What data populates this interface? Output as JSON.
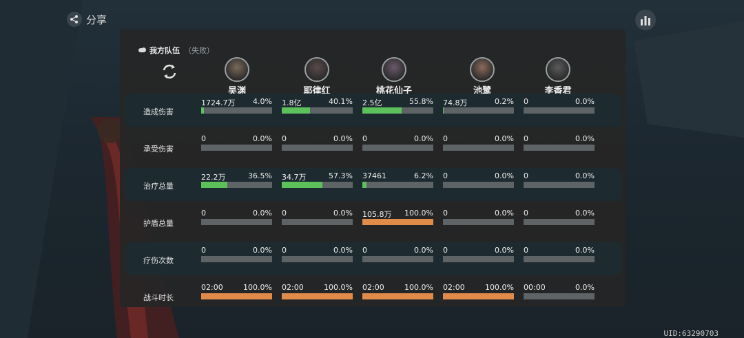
{
  "header": {
    "share_label": "分享"
  },
  "team": {
    "title": "我方队伍",
    "status": "（失败）"
  },
  "characters": [
    {
      "name": "吴渊"
    },
    {
      "name": "耶律红"
    },
    {
      "name": "桃花仙子"
    },
    {
      "name": "池鹭"
    },
    {
      "name": "李香君"
    }
  ],
  "colors": {
    "green": "#5cc15a",
    "orange": "#e08b4a",
    "track": "#5e6466"
  },
  "rows": [
    {
      "label": "造成伤害",
      "color": "green",
      "cells": [
        {
          "value": "1724.7万",
          "pct": "4.0%",
          "fraction": 0.04
        },
        {
          "value": "1.8亿",
          "pct": "40.1%",
          "fraction": 0.401
        },
        {
          "value": "2.5亿",
          "pct": "55.8%",
          "fraction": 0.558
        },
        {
          "value": "74.8万",
          "pct": "0.2%",
          "fraction": 0.002
        },
        {
          "value": "0",
          "pct": "0.0%",
          "fraction": 0
        }
      ]
    },
    {
      "label": "承受伤害",
      "color": "green",
      "cells": [
        {
          "value": "0",
          "pct": "0.0%",
          "fraction": 0
        },
        {
          "value": "0",
          "pct": "0.0%",
          "fraction": 0
        },
        {
          "value": "0",
          "pct": "0.0%",
          "fraction": 0
        },
        {
          "value": "0",
          "pct": "0.0%",
          "fraction": 0
        },
        {
          "value": "0",
          "pct": "0.0%",
          "fraction": 0
        }
      ]
    },
    {
      "label": "治疗总量",
      "color": "green",
      "cells": [
        {
          "value": "22.2万",
          "pct": "36.5%",
          "fraction": 0.365
        },
        {
          "value": "34.7万",
          "pct": "57.3%",
          "fraction": 0.573
        },
        {
          "value": "37461",
          "pct": "6.2%",
          "fraction": 0.062
        },
        {
          "value": "0",
          "pct": "0.0%",
          "fraction": 0
        },
        {
          "value": "0",
          "pct": "0.0%",
          "fraction": 0
        }
      ]
    },
    {
      "label": "护盾总量",
      "color": "orange",
      "cells": [
        {
          "value": "0",
          "pct": "0.0%",
          "fraction": 0
        },
        {
          "value": "0",
          "pct": "0.0%",
          "fraction": 0
        },
        {
          "value": "105.8万",
          "pct": "100.0%",
          "fraction": 1.0
        },
        {
          "value": "0",
          "pct": "0.0%",
          "fraction": 0
        },
        {
          "value": "0",
          "pct": "0.0%",
          "fraction": 0
        }
      ]
    },
    {
      "label": "疗伤次数",
      "color": "green",
      "cells": [
        {
          "value": "0",
          "pct": "0.0%",
          "fraction": 0
        },
        {
          "value": "0",
          "pct": "0.0%",
          "fraction": 0
        },
        {
          "value": "0",
          "pct": "0.0%",
          "fraction": 0
        },
        {
          "value": "0",
          "pct": "0.0%",
          "fraction": 0
        },
        {
          "value": "0",
          "pct": "0.0%",
          "fraction": 0
        }
      ]
    },
    {
      "label": "战斗时长",
      "color": "orange",
      "cells": [
        {
          "value": "02:00",
          "pct": "100.0%",
          "fraction": 1.0
        },
        {
          "value": "02:00",
          "pct": "100.0%",
          "fraction": 1.0
        },
        {
          "value": "02:00",
          "pct": "100.0%",
          "fraction": 1.0
        },
        {
          "value": "02:00",
          "pct": "100.0%",
          "fraction": 1.0
        },
        {
          "value": "00:00",
          "pct": "0.0%",
          "fraction": 0
        }
      ]
    }
  ],
  "footer": {
    "uid": "UID:63290703"
  },
  "icons": {
    "share": "share-icon",
    "stats": "bar-chart-icon",
    "refresh": "refresh-icon",
    "toggle": "toggle-icon"
  }
}
